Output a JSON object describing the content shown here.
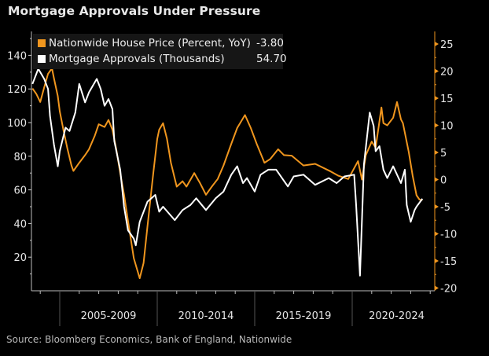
{
  "title": "Mortgage Approvals Under Pressure",
  "source": "Source: Bloomberg Economics, Bank of England, Nationwide",
  "chart_data": {
    "type": "line",
    "title": "Mortgage Approvals Under Pressure",
    "x_categories": [
      "2005-2009",
      "2010-2014",
      "2015-2019",
      "2020-2024"
    ],
    "xlim": [
      2003.55,
      2024.23
    ],
    "left_axis": {
      "ylim": [
        0,
        150
      ],
      "ticks": [
        20,
        40,
        60,
        80,
        100,
        120,
        140
      ]
    },
    "right_axis": {
      "ylim": [
        -21,
        26
      ],
      "ticks": [
        25,
        20,
        15,
        10,
        5,
        0,
        -5,
        -10,
        -15,
        -20
      ]
    },
    "grid": false,
    "legend_placement": "top-left",
    "series": [
      {
        "name": "Nationwide House Price (Percent, YoY)",
        "last_value": "-3.80",
        "axis": "right",
        "color": "#f0961e",
        "x": [
          2003.6,
          2003.8,
          2004.0,
          2004.2,
          2004.4,
          2004.6,
          2004.7,
          2004.9,
          2005.0,
          2005.2,
          2005.4,
          2005.6,
          2005.7,
          2006.0,
          2006.3,
          2006.5,
          2006.8,
          2007.0,
          2007.3,
          2007.5,
          2007.7,
          2007.9,
          2008.1,
          2008.3,
          2008.5,
          2008.8,
          2009.1,
          2009.3,
          2009.5,
          2009.8,
          2010.0,
          2010.1,
          2010.3,
          2010.5,
          2010.7,
          2011.0,
          2011.3,
          2011.5,
          2011.9,
          2012.2,
          2012.5,
          2012.8,
          2013.1,
          2013.4,
          2013.8,
          2014.1,
          2014.5,
          2014.8,
          2015.1,
          2015.5,
          2015.8,
          2016.2,
          2016.5,
          2016.9,
          2017.5,
          2018.1,
          2018.9,
          2019.3,
          2019.8,
          2020.3,
          2020.5,
          2020.7,
          2021.0,
          2021.2,
          2021.5,
          2021.6,
          2021.8,
          2022.1,
          2022.3,
          2022.5,
          2022.6,
          2022.9,
          2023.1,
          2023.3,
          2023.45,
          2023.6
        ],
        "y": [
          16.8,
          15.8,
          14.3,
          17.0,
          19.5,
          20.5,
          18.7,
          15.4,
          12.6,
          8.9,
          5.6,
          2.6,
          1.6,
          3.1,
          4.5,
          5.6,
          8.1,
          10.2,
          9.7,
          11.0,
          9.2,
          5.6,
          1.2,
          -2.8,
          -7.6,
          -14.5,
          -18.2,
          -15.4,
          -8.6,
          1.2,
          7.5,
          9.2,
          10.4,
          7.5,
          3.1,
          -1.3,
          -0.3,
          -1.3,
          1.2,
          -0.7,
          -2.8,
          -1.3,
          0.1,
          2.6,
          6.6,
          9.5,
          11.9,
          9.5,
          6.6,
          3.1,
          3.8,
          5.6,
          4.5,
          4.4,
          2.6,
          2.9,
          1.5,
          0.7,
          0.1,
          3.4,
          0.0,
          4.5,
          7.0,
          5.9,
          13.3,
          10.4,
          10.0,
          11.4,
          14.3,
          11.1,
          10.4,
          5.1,
          0.7,
          -2.9,
          -3.7,
          -3.8
        ]
      },
      {
        "name": "Mortgage Approvals (Thousands)",
        "last_value": "54.70",
        "axis": "left",
        "color": "#ffffff",
        "x": [
          2003.6,
          2003.9,
          2004.2,
          2004.4,
          2004.5,
          2004.7,
          2004.9,
          2005.0,
          2005.3,
          2005.5,
          2005.8,
          2006.0,
          2006.3,
          2006.5,
          2006.9,
          2007.1,
          2007.3,
          2007.5,
          2007.7,
          2007.8,
          2008.1,
          2008.3,
          2008.5,
          2008.8,
          2008.9,
          2009.1,
          2009.5,
          2009.9,
          2010.1,
          2010.3,
          2010.9,
          2011.3,
          2011.7,
          2012.0,
          2012.5,
          2013.0,
          2013.4,
          2013.8,
          2014.1,
          2014.4,
          2014.6,
          2015.0,
          2015.3,
          2015.7,
          2016.1,
          2016.7,
          2017.0,
          2017.5,
          2018.1,
          2018.8,
          2019.2,
          2019.6,
          2020.1,
          2020.2,
          2020.4,
          2020.6,
          2020.9,
          2021.1,
          2021.2,
          2021.4,
          2021.6,
          2021.8,
          2022.1,
          2022.5,
          2022.7,
          2022.8,
          2023.0,
          2023.2,
          2023.3,
          2023.6
        ],
        "y": [
          123,
          132,
          126,
          120,
          104,
          87,
          74,
          83,
          97,
          95,
          106,
          123,
          112,
          118,
          126,
          120,
          110,
          114,
          108,
          89,
          72,
          50,
          36,
          31,
          27,
          41,
          53,
          57,
          47,
          50,
          42,
          48,
          51,
          55,
          48,
          55,
          59,
          69,
          74,
          64,
          67,
          59,
          69,
          72,
          72,
          62,
          68,
          69,
          63,
          67,
          64,
          68,
          69,
          51,
          9,
          75,
          106,
          98,
          83,
          86,
          72,
          67,
          74,
          64,
          72,
          51,
          41,
          48,
          50,
          54.7
        ]
      }
    ]
  }
}
